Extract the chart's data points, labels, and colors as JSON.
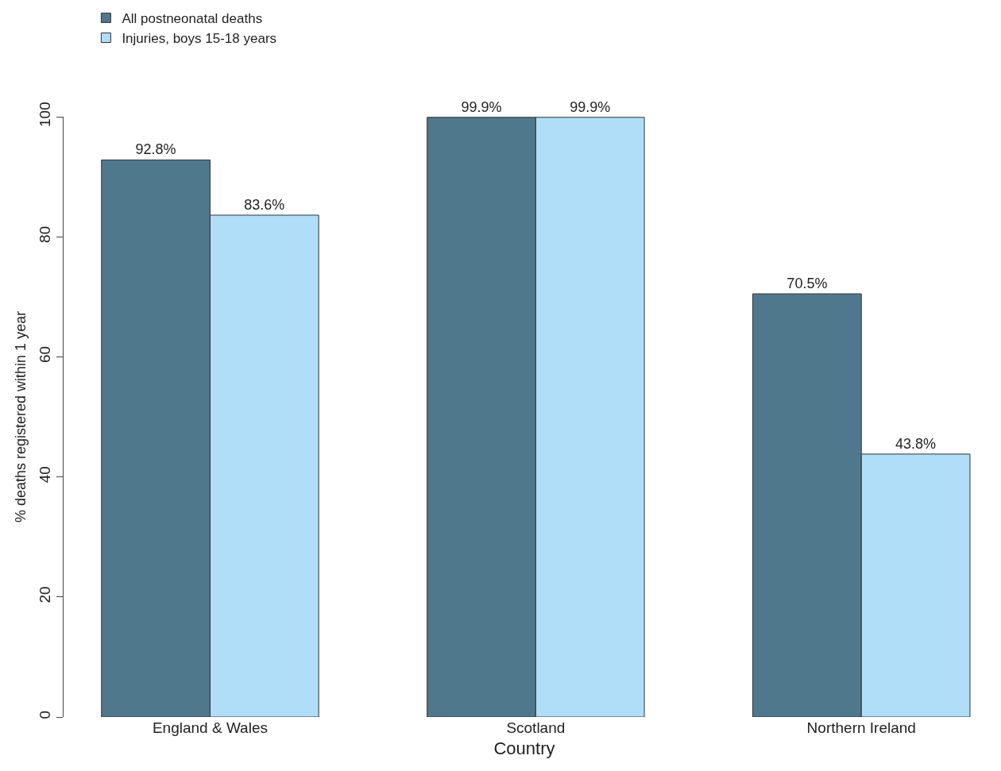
{
  "chart_data": {
    "type": "bar",
    "xlabel": "Country",
    "ylabel": "% deaths registered within 1 year",
    "categories": [
      "England & Wales",
      "Scotland",
      "Northern Ireland"
    ],
    "series": [
      {
        "name": "All postneonatal deaths",
        "color": "#50788c",
        "values": [
          92.8,
          99.9,
          70.5
        ],
        "value_labels": [
          "92.8%",
          "99.9%",
          "70.5%"
        ]
      },
      {
        "name": "Injuries, boys 15-18 years",
        "color": "#b0def8",
        "values": [
          83.6,
          99.9,
          43.8
        ],
        "value_labels": [
          "83.6%",
          "99.9%",
          "43.8%"
        ]
      }
    ],
    "ylim": [
      0,
      100
    ],
    "yticks": [
      0,
      20,
      40,
      60,
      80,
      100
    ],
    "legend": "top left"
  }
}
